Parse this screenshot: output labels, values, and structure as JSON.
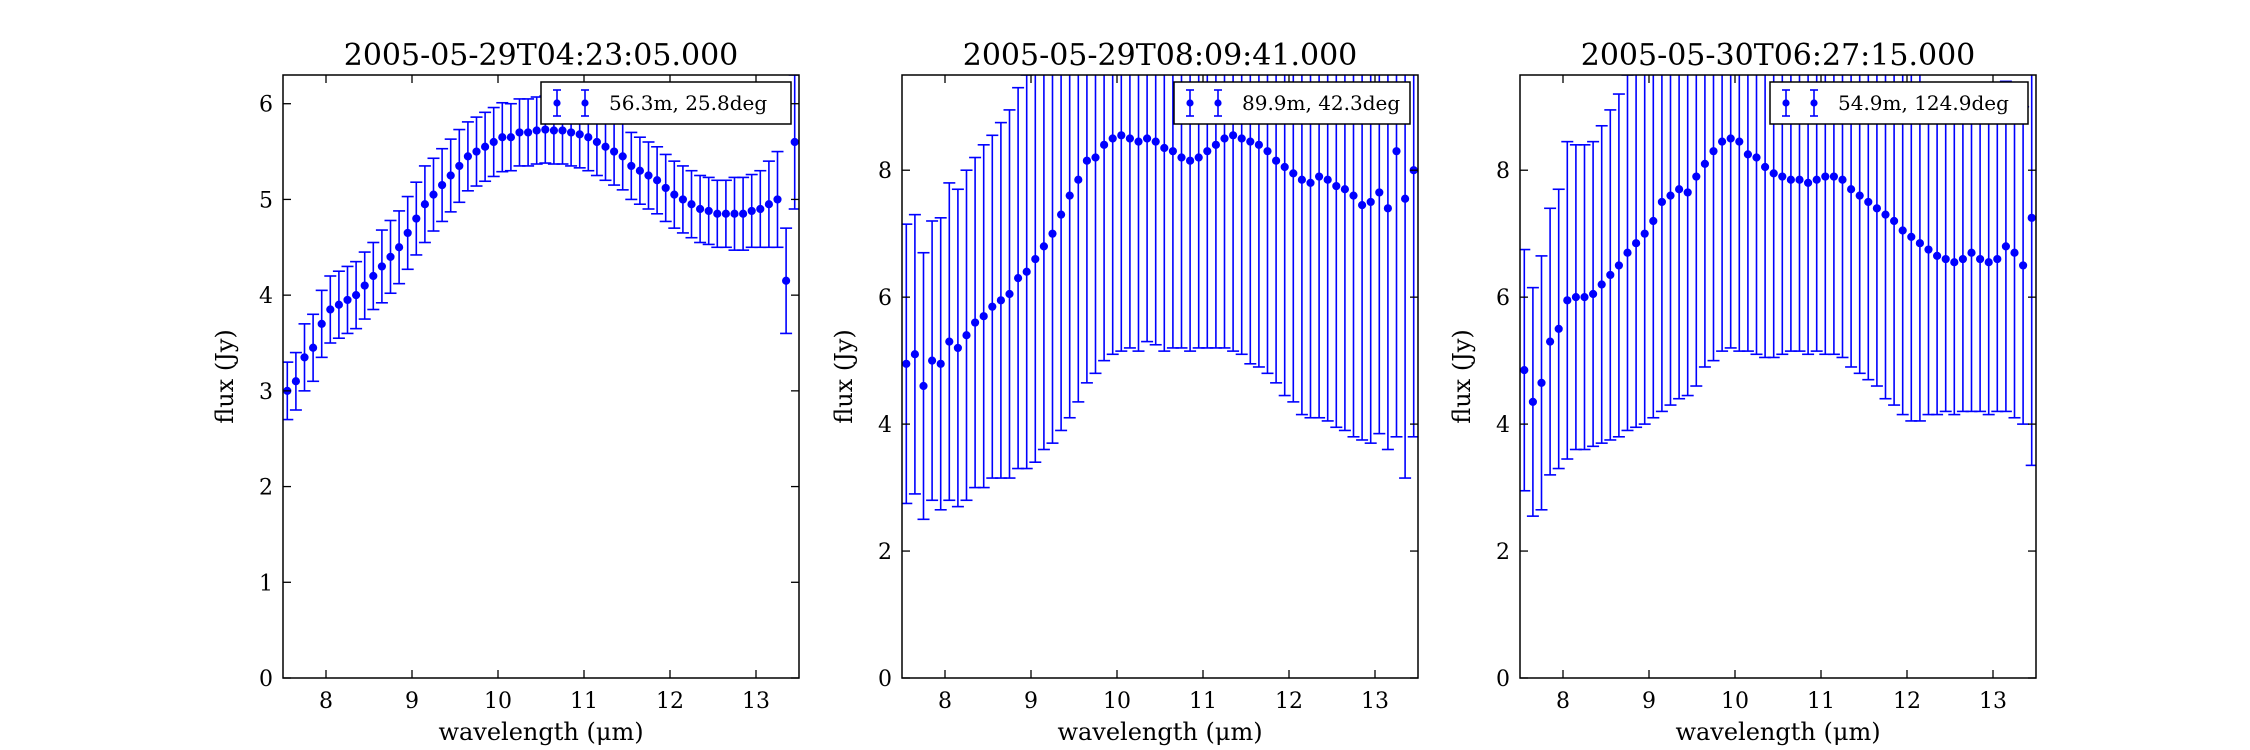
{
  "chart_data": [
    {
      "type": "scatter",
      "title": "2005-05-29T04:23:05.000",
      "xlabel": "wavelength (μm)",
      "ylabel": "flux (Jy)",
      "xlim": [
        7.5,
        13.5
      ],
      "ylim": [
        0,
        6.3
      ],
      "xticks": [
        8,
        9,
        10,
        11,
        12,
        13
      ],
      "yticks": [
        0,
        1,
        2,
        3,
        4,
        5,
        6
      ],
      "grid": false,
      "legend_position": "top-right",
      "series": [
        {
          "name": "56.3m, 25.8deg",
          "color": "#0000ff",
          "error_bars": true,
          "x": [
            7.55,
            7.65,
            7.75,
            7.85,
            7.95,
            8.05,
            8.15,
            8.25,
            8.35,
            8.45,
            8.55,
            8.65,
            8.75,
            8.85,
            8.95,
            9.05,
            9.15,
            9.25,
            9.35,
            9.45,
            9.55,
            9.65,
            9.75,
            9.85,
            9.95,
            10.05,
            10.15,
            10.25,
            10.35,
            10.45,
            10.55,
            10.65,
            10.75,
            10.85,
            10.95,
            11.05,
            11.15,
            11.25,
            11.35,
            11.45,
            11.55,
            11.65,
            11.75,
            11.85,
            11.95,
            12.05,
            12.15,
            12.25,
            12.35,
            12.45,
            12.55,
            12.65,
            12.75,
            12.85,
            12.95,
            13.05,
            13.15,
            13.25,
            13.35,
            13.45
          ],
          "y": [
            3.0,
            3.1,
            3.35,
            3.45,
            3.7,
            3.85,
            3.9,
            3.95,
            4.0,
            4.1,
            4.2,
            4.3,
            4.4,
            4.5,
            4.65,
            4.8,
            4.95,
            5.05,
            5.15,
            5.25,
            5.35,
            5.45,
            5.5,
            5.55,
            5.6,
            5.65,
            5.65,
            5.7,
            5.7,
            5.72,
            5.73,
            5.72,
            5.72,
            5.7,
            5.68,
            5.65,
            5.6,
            5.55,
            5.5,
            5.45,
            5.35,
            5.3,
            5.25,
            5.2,
            5.12,
            5.05,
            5.0,
            4.95,
            4.9,
            4.88,
            4.85,
            4.85,
            4.85,
            4.85,
            4.88,
            4.9,
            4.95,
            5.0,
            4.15,
            5.6
          ],
          "yerr": [
            0.3,
            0.3,
            0.35,
            0.35,
            0.35,
            0.35,
            0.35,
            0.35,
            0.35,
            0.35,
            0.35,
            0.38,
            0.38,
            0.38,
            0.38,
            0.38,
            0.4,
            0.38,
            0.38,
            0.38,
            0.38,
            0.36,
            0.36,
            0.36,
            0.36,
            0.36,
            0.35,
            0.35,
            0.35,
            0.35,
            0.35,
            0.35,
            0.35,
            0.35,
            0.35,
            0.35,
            0.35,
            0.35,
            0.35,
            0.35,
            0.35,
            0.35,
            0.35,
            0.35,
            0.35,
            0.35,
            0.35,
            0.35,
            0.35,
            0.35,
            0.35,
            0.35,
            0.38,
            0.38,
            0.38,
            0.4,
            0.45,
            0.5,
            0.55,
            0.7
          ]
        }
      ]
    },
    {
      "type": "scatter",
      "title": "2005-05-29T08:09:41.000",
      "xlabel": "wavelength (μm)",
      "ylabel": "flux (Jy)",
      "xlim": [
        7.5,
        13.5
      ],
      "ylim": [
        0,
        9.5
      ],
      "xticks": [
        8,
        9,
        10,
        11,
        12,
        13
      ],
      "yticks": [
        0,
        2,
        4,
        6,
        8
      ],
      "grid": false,
      "legend_position": "top-right",
      "series": [
        {
          "name": "89.9m, 42.3deg",
          "color": "#0000ff",
          "error_bars": true,
          "x": [
            7.55,
            7.65,
            7.75,
            7.85,
            7.95,
            8.05,
            8.15,
            8.25,
            8.35,
            8.45,
            8.55,
            8.65,
            8.75,
            8.85,
            8.95,
            9.05,
            9.15,
            9.25,
            9.35,
            9.45,
            9.55,
            9.65,
            9.75,
            9.85,
            9.95,
            10.05,
            10.15,
            10.25,
            10.35,
            10.45,
            10.55,
            10.65,
            10.75,
            10.85,
            10.95,
            11.05,
            11.15,
            11.25,
            11.35,
            11.45,
            11.55,
            11.65,
            11.75,
            11.85,
            11.95,
            12.05,
            12.15,
            12.25,
            12.35,
            12.45,
            12.55,
            12.65,
            12.75,
            12.85,
            12.95,
            13.05,
            13.15,
            13.25,
            13.35,
            13.45
          ],
          "y": [
            4.95,
            5.1,
            4.6,
            5.0,
            4.95,
            5.3,
            5.2,
            5.4,
            5.6,
            5.7,
            5.85,
            5.95,
            6.05,
            6.3,
            6.4,
            6.6,
            6.8,
            7.0,
            7.3,
            7.6,
            7.85,
            8.15,
            8.2,
            8.4,
            8.5,
            8.55,
            8.5,
            8.45,
            8.5,
            8.45,
            8.35,
            8.3,
            8.2,
            8.15,
            8.2,
            8.3,
            8.4,
            8.5,
            8.55,
            8.5,
            8.45,
            8.4,
            8.3,
            8.15,
            8.05,
            7.95,
            7.85,
            7.8,
            7.9,
            7.85,
            7.75,
            7.7,
            7.6,
            7.45,
            7.5,
            7.65,
            7.4,
            8.3,
            7.55,
            8.0
          ],
          "yerr": [
            2.2,
            2.2,
            2.1,
            2.2,
            2.3,
            2.5,
            2.5,
            2.6,
            2.6,
            2.7,
            2.7,
            2.8,
            2.9,
            3.0,
            3.1,
            3.2,
            3.2,
            3.3,
            3.4,
            3.5,
            3.5,
            3.5,
            3.4,
            3.4,
            3.4,
            3.4,
            3.3,
            3.3,
            3.2,
            3.2,
            3.2,
            3.1,
            3.0,
            3.0,
            3.0,
            3.1,
            3.2,
            3.3,
            3.4,
            3.4,
            3.5,
            3.5,
            3.5,
            3.5,
            3.6,
            3.6,
            3.7,
            3.7,
            3.8,
            3.8,
            3.8,
            3.8,
            3.8,
            3.7,
            3.8,
            3.8,
            3.8,
            4.5,
            4.4,
            4.2
          ]
        }
      ]
    },
    {
      "type": "scatter",
      "title": "2005-05-30T06:27:15.000",
      "xlabel": "wavelength (μm)",
      "ylabel": "flux (Jy)",
      "xlim": [
        7.5,
        13.5
      ],
      "ylim": [
        0,
        9.5
      ],
      "xticks": [
        8,
        9,
        10,
        11,
        12,
        13
      ],
      "yticks": [
        0,
        2,
        4,
        6,
        8
      ],
      "grid": false,
      "legend_position": "top-right",
      "series": [
        {
          "name": "54.9m, 124.9deg",
          "color": "#0000ff",
          "error_bars": true,
          "x": [
            7.55,
            7.65,
            7.75,
            7.85,
            7.95,
            8.05,
            8.15,
            8.25,
            8.35,
            8.45,
            8.55,
            8.65,
            8.75,
            8.85,
            8.95,
            9.05,
            9.15,
            9.25,
            9.35,
            9.45,
            9.55,
            9.65,
            9.75,
            9.85,
            9.95,
            10.05,
            10.15,
            10.25,
            10.35,
            10.45,
            10.55,
            10.65,
            10.75,
            10.85,
            10.95,
            11.05,
            11.15,
            11.25,
            11.35,
            11.45,
            11.55,
            11.65,
            11.75,
            11.85,
            11.95,
            12.05,
            12.15,
            12.25,
            12.35,
            12.45,
            12.55,
            12.65,
            12.75,
            12.85,
            12.95,
            13.05,
            13.15,
            13.25,
            13.35,
            13.45
          ],
          "y": [
            4.85,
            4.35,
            4.65,
            5.3,
            5.5,
            5.95,
            6.0,
            6.0,
            6.05,
            6.2,
            6.35,
            6.5,
            6.7,
            6.85,
            7.0,
            7.2,
            7.5,
            7.6,
            7.7,
            7.65,
            7.9,
            8.1,
            8.3,
            8.45,
            8.5,
            8.45,
            8.25,
            8.2,
            8.05,
            7.95,
            7.9,
            7.85,
            7.85,
            7.8,
            7.85,
            7.9,
            7.9,
            7.85,
            7.7,
            7.6,
            7.5,
            7.4,
            7.3,
            7.2,
            7.05,
            6.95,
            6.85,
            6.75,
            6.65,
            6.6,
            6.55,
            6.6,
            6.7,
            6.6,
            6.55,
            6.6,
            6.8,
            6.7,
            6.5,
            7.25
          ],
          "yerr": [
            1.9,
            1.8,
            2.0,
            2.1,
            2.2,
            2.5,
            2.4,
            2.4,
            2.4,
            2.5,
            2.6,
            2.7,
            2.8,
            2.9,
            3.0,
            3.1,
            3.3,
            3.3,
            3.3,
            3.2,
            3.3,
            3.2,
            3.3,
            3.3,
            3.3,
            3.3,
            3.1,
            3.1,
            3.0,
            2.9,
            2.8,
            2.7,
            2.7,
            2.7,
            2.7,
            2.8,
            2.8,
            2.8,
            2.8,
            2.8,
            2.8,
            2.8,
            2.9,
            2.9,
            2.9,
            2.9,
            2.8,
            2.6,
            2.5,
            2.4,
            2.4,
            2.4,
            2.5,
            2.4,
            2.4,
            2.4,
            2.6,
            2.6,
            2.5,
            3.9
          ]
        }
      ]
    }
  ]
}
